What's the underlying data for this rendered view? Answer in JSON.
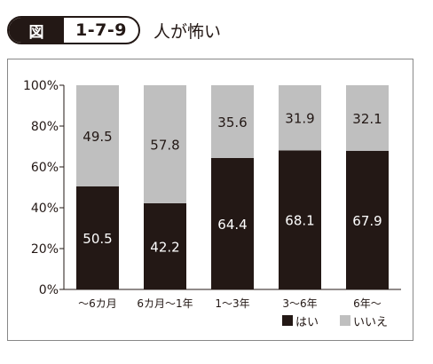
{
  "figure": {
    "tag": "図",
    "number": "1-7-9",
    "title": "人が怖い"
  },
  "colors": {
    "hai": "#231815",
    "iie": "#bfbfbf",
    "axis": "#231815",
    "text_on_dark": "#ffffff"
  },
  "chart_data": {
    "type": "bar",
    "stacked": true,
    "categories": [
      "〜6カ月",
      "6カ月〜1年",
      "1〜3年",
      "3〜6年",
      "6年〜"
    ],
    "series": [
      {
        "name": "はい",
        "values": [
          50.5,
          42.2,
          64.4,
          68.1,
          67.9
        ]
      },
      {
        "name": "いいえ",
        "values": [
          49.5,
          57.8,
          35.6,
          31.9,
          32.1
        ]
      }
    ],
    "yticks": [
      "0%",
      "20%",
      "40%",
      "60%",
      "80%",
      "100%"
    ],
    "ylim": [
      0,
      100
    ],
    "legend_position": "bottom-right",
    "grid": false
  }
}
